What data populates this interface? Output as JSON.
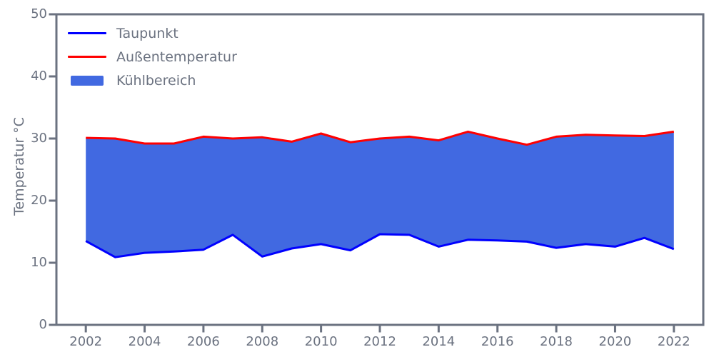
{
  "figure": {
    "background": "#ffffff"
  },
  "chart_data": {
    "type": "area",
    "title": "",
    "xlabel": "",
    "ylabel": "Temperatur °C",
    "grid": false,
    "axis_color": "#6b7280",
    "xlim": [
      2001,
      2023
    ],
    "ylim": [
      0,
      50
    ],
    "x_ticks": [
      2002,
      2004,
      2006,
      2008,
      2010,
      2012,
      2014,
      2016,
      2018,
      2020,
      2022
    ],
    "y_ticks": [
      0,
      10,
      20,
      30,
      40,
      50
    ],
    "x": [
      2002,
      2003,
      2004,
      2005,
      2006,
      2007,
      2008,
      2009,
      2010,
      2011,
      2012,
      2013,
      2014,
      2015,
      2016,
      2017,
      2018,
      2019,
      2020,
      2021,
      2022
    ],
    "series": [
      {
        "name": "Taupunkt",
        "color": "#0000ff",
        "values": [
          13.5,
          10.9,
          11.6,
          11.8,
          12.1,
          14.5,
          11.0,
          12.3,
          13.0,
          12.0,
          14.6,
          14.5,
          12.6,
          13.7,
          13.6,
          13.4,
          12.4,
          13.0,
          12.6,
          14.0,
          12.2
        ]
      },
      {
        "name": "Außentemperatur",
        "color": "#ff0000",
        "values": [
          30.1,
          30.0,
          29.2,
          29.2,
          30.3,
          30.0,
          30.2,
          29.5,
          30.8,
          29.4,
          30.0,
          30.3,
          29.7,
          31.1,
          30.0,
          29.0,
          30.3,
          30.6,
          30.5,
          30.4,
          31.1
        ]
      }
    ],
    "area": {
      "name": "Kühlbereich",
      "color": "#4169e1",
      "between": [
        "Taupunkt",
        "Außentemperatur"
      ]
    },
    "legend": {
      "position": "upper-left",
      "entries": [
        {
          "label": "Taupunkt",
          "swatch": "line",
          "color": "#0000ff"
        },
        {
          "label": "Außentemperatur",
          "swatch": "line",
          "color": "#ff0000"
        },
        {
          "label": "Kühlbereich",
          "swatch": "patch",
          "color": "#4169e1"
        }
      ]
    }
  }
}
